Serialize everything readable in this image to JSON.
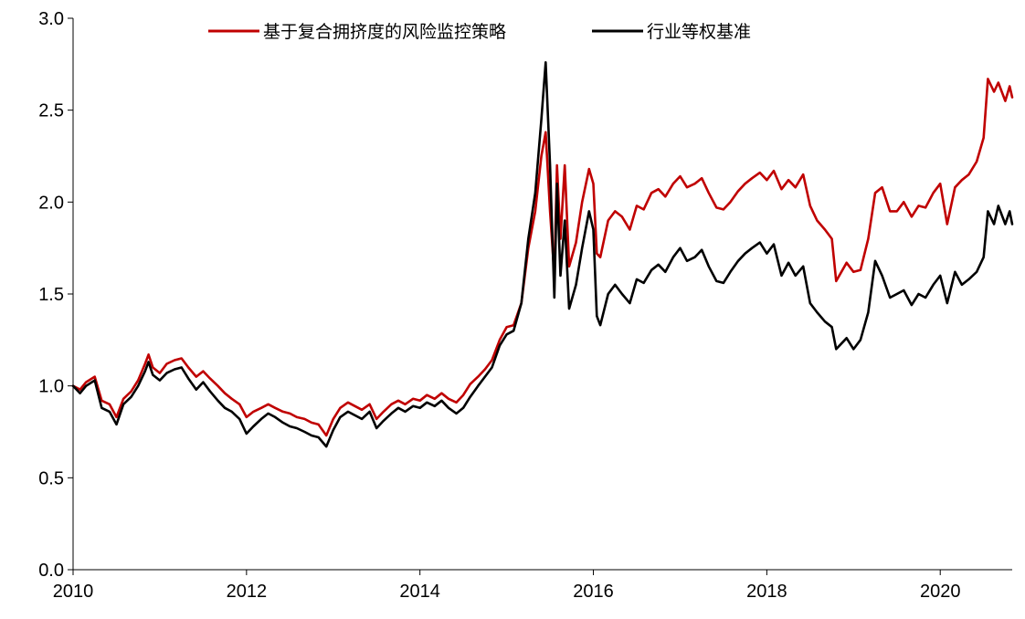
{
  "chart_data": {
    "type": "line",
    "title": "",
    "xlabel": "",
    "ylabel": "",
    "xlim": [
      2010.0,
      2020.83
    ],
    "ylim": [
      0.0,
      3.0
    ],
    "x_ticks": [
      "2010",
      "2012",
      "2014",
      "2016",
      "2018",
      "2020"
    ],
    "y_ticks": [
      "0.0",
      "0.5",
      "1.0",
      "1.5",
      "2.0",
      "2.5",
      "3.0"
    ],
    "grid": false,
    "legend_position": "top-center",
    "series": [
      {
        "name": "基于复合拥挤度的风险监控策略",
        "color": "#c00000",
        "points": [
          [
            2010.0,
            1.0
          ],
          [
            2010.08,
            0.98
          ],
          [
            2010.15,
            1.02
          ],
          [
            2010.25,
            1.05
          ],
          [
            2010.33,
            0.92
          ],
          [
            2010.42,
            0.9
          ],
          [
            2010.5,
            0.83
          ],
          [
            2010.58,
            0.93
          ],
          [
            2010.67,
            0.97
          ],
          [
            2010.75,
            1.03
          ],
          [
            2010.83,
            1.12
          ],
          [
            2010.87,
            1.17
          ],
          [
            2010.92,
            1.1
          ],
          [
            2011.0,
            1.07
          ],
          [
            2011.08,
            1.12
          ],
          [
            2011.17,
            1.14
          ],
          [
            2011.25,
            1.15
          ],
          [
            2011.33,
            1.1
          ],
          [
            2011.42,
            1.05
          ],
          [
            2011.5,
            1.08
          ],
          [
            2011.58,
            1.04
          ],
          [
            2011.67,
            1.0
          ],
          [
            2011.75,
            0.96
          ],
          [
            2011.83,
            0.93
          ],
          [
            2011.92,
            0.9
          ],
          [
            2012.0,
            0.83
          ],
          [
            2012.08,
            0.86
          ],
          [
            2012.17,
            0.88
          ],
          [
            2012.25,
            0.9
          ],
          [
            2012.33,
            0.88
          ],
          [
            2012.42,
            0.86
          ],
          [
            2012.5,
            0.85
          ],
          [
            2012.58,
            0.83
          ],
          [
            2012.67,
            0.82
          ],
          [
            2012.75,
            0.8
          ],
          [
            2012.83,
            0.79
          ],
          [
            2012.92,
            0.73
          ],
          [
            2013.0,
            0.82
          ],
          [
            2013.08,
            0.88
          ],
          [
            2013.17,
            0.91
          ],
          [
            2013.25,
            0.89
          ],
          [
            2013.33,
            0.87
          ],
          [
            2013.42,
            0.9
          ],
          [
            2013.5,
            0.82
          ],
          [
            2013.58,
            0.86
          ],
          [
            2013.67,
            0.9
          ],
          [
            2013.75,
            0.92
          ],
          [
            2013.83,
            0.9
          ],
          [
            2013.92,
            0.93
          ],
          [
            2014.0,
            0.92
          ],
          [
            2014.08,
            0.95
          ],
          [
            2014.17,
            0.93
          ],
          [
            2014.25,
            0.96
          ],
          [
            2014.33,
            0.93
          ],
          [
            2014.42,
            0.91
          ],
          [
            2014.5,
            0.95
          ],
          [
            2014.58,
            1.01
          ],
          [
            2014.67,
            1.05
          ],
          [
            2014.75,
            1.09
          ],
          [
            2014.83,
            1.14
          ],
          [
            2014.92,
            1.25
          ],
          [
            2015.0,
            1.32
          ],
          [
            2015.08,
            1.33
          ],
          [
            2015.17,
            1.45
          ],
          [
            2015.25,
            1.75
          ],
          [
            2015.33,
            1.95
          ],
          [
            2015.4,
            2.25
          ],
          [
            2015.45,
            2.38
          ],
          [
            2015.5,
            1.95
          ],
          [
            2015.55,
            1.6
          ],
          [
            2015.58,
            2.2
          ],
          [
            2015.62,
            1.8
          ],
          [
            2015.67,
            2.2
          ],
          [
            2015.72,
            1.65
          ],
          [
            2015.8,
            1.78
          ],
          [
            2015.87,
            2.0
          ],
          [
            2015.95,
            2.18
          ],
          [
            2016.0,
            2.1
          ],
          [
            2016.04,
            1.72
          ],
          [
            2016.08,
            1.7
          ],
          [
            2016.17,
            1.9
          ],
          [
            2016.25,
            1.95
          ],
          [
            2016.33,
            1.92
          ],
          [
            2016.42,
            1.85
          ],
          [
            2016.5,
            1.98
          ],
          [
            2016.58,
            1.96
          ],
          [
            2016.67,
            2.05
          ],
          [
            2016.75,
            2.07
          ],
          [
            2016.83,
            2.03
          ],
          [
            2016.92,
            2.1
          ],
          [
            2017.0,
            2.14
          ],
          [
            2017.08,
            2.08
          ],
          [
            2017.17,
            2.1
          ],
          [
            2017.25,
            2.13
          ],
          [
            2017.33,
            2.05
          ],
          [
            2017.42,
            1.97
          ],
          [
            2017.5,
            1.96
          ],
          [
            2017.58,
            2.0
          ],
          [
            2017.67,
            2.06
          ],
          [
            2017.75,
            2.1
          ],
          [
            2017.83,
            2.13
          ],
          [
            2017.92,
            2.16
          ],
          [
            2018.0,
            2.12
          ],
          [
            2018.08,
            2.17
          ],
          [
            2018.17,
            2.07
          ],
          [
            2018.25,
            2.12
          ],
          [
            2018.33,
            2.08
          ],
          [
            2018.42,
            2.15
          ],
          [
            2018.5,
            1.98
          ],
          [
            2018.58,
            1.9
          ],
          [
            2018.67,
            1.85
          ],
          [
            2018.75,
            1.8
          ],
          [
            2018.8,
            1.57
          ],
          [
            2018.92,
            1.67
          ],
          [
            2019.0,
            1.62
          ],
          [
            2019.08,
            1.63
          ],
          [
            2019.17,
            1.8
          ],
          [
            2019.25,
            2.05
          ],
          [
            2019.33,
            2.08
          ],
          [
            2019.42,
            1.95
          ],
          [
            2019.5,
            1.95
          ],
          [
            2019.58,
            2.0
          ],
          [
            2019.67,
            1.92
          ],
          [
            2019.75,
            1.98
          ],
          [
            2019.83,
            1.97
          ],
          [
            2019.92,
            2.05
          ],
          [
            2020.0,
            2.1
          ],
          [
            2020.08,
            1.88
          ],
          [
            2020.17,
            2.08
          ],
          [
            2020.25,
            2.12
          ],
          [
            2020.33,
            2.15
          ],
          [
            2020.42,
            2.22
          ],
          [
            2020.5,
            2.35
          ],
          [
            2020.55,
            2.67
          ],
          [
            2020.62,
            2.6
          ],
          [
            2020.67,
            2.65
          ],
          [
            2020.75,
            2.55
          ],
          [
            2020.8,
            2.63
          ],
          [
            2020.83,
            2.57
          ]
        ]
      },
      {
        "name": "行业等权基准",
        "color": "#000000",
        "points": [
          [
            2010.0,
            1.0
          ],
          [
            2010.08,
            0.96
          ],
          [
            2010.15,
            1.0
          ],
          [
            2010.25,
            1.03
          ],
          [
            2010.33,
            0.88
          ],
          [
            2010.42,
            0.86
          ],
          [
            2010.5,
            0.79
          ],
          [
            2010.58,
            0.9
          ],
          [
            2010.67,
            0.94
          ],
          [
            2010.75,
            1.0
          ],
          [
            2010.83,
            1.08
          ],
          [
            2010.87,
            1.13
          ],
          [
            2010.92,
            1.06
          ],
          [
            2011.0,
            1.03
          ],
          [
            2011.08,
            1.07
          ],
          [
            2011.17,
            1.09
          ],
          [
            2011.25,
            1.1
          ],
          [
            2011.33,
            1.04
          ],
          [
            2011.42,
            0.98
          ],
          [
            2011.5,
            1.02
          ],
          [
            2011.58,
            0.97
          ],
          [
            2011.67,
            0.92
          ],
          [
            2011.75,
            0.88
          ],
          [
            2011.83,
            0.86
          ],
          [
            2011.92,
            0.82
          ],
          [
            2012.0,
            0.74
          ],
          [
            2012.08,
            0.78
          ],
          [
            2012.17,
            0.82
          ],
          [
            2012.25,
            0.85
          ],
          [
            2012.33,
            0.83
          ],
          [
            2012.42,
            0.8
          ],
          [
            2012.5,
            0.78
          ],
          [
            2012.58,
            0.77
          ],
          [
            2012.67,
            0.75
          ],
          [
            2012.75,
            0.73
          ],
          [
            2012.83,
            0.72
          ],
          [
            2012.92,
            0.67
          ],
          [
            2013.0,
            0.76
          ],
          [
            2013.08,
            0.83
          ],
          [
            2013.17,
            0.86
          ],
          [
            2013.25,
            0.84
          ],
          [
            2013.33,
            0.82
          ],
          [
            2013.42,
            0.86
          ],
          [
            2013.5,
            0.77
          ],
          [
            2013.58,
            0.81
          ],
          [
            2013.67,
            0.85
          ],
          [
            2013.75,
            0.88
          ],
          [
            2013.83,
            0.86
          ],
          [
            2013.92,
            0.89
          ],
          [
            2014.0,
            0.88
          ],
          [
            2014.08,
            0.91
          ],
          [
            2014.17,
            0.89
          ],
          [
            2014.25,
            0.92
          ],
          [
            2014.33,
            0.88
          ],
          [
            2014.42,
            0.85
          ],
          [
            2014.5,
            0.88
          ],
          [
            2014.58,
            0.94
          ],
          [
            2014.67,
            1.0
          ],
          [
            2014.75,
            1.05
          ],
          [
            2014.83,
            1.1
          ],
          [
            2014.92,
            1.22
          ],
          [
            2015.0,
            1.28
          ],
          [
            2015.08,
            1.3
          ],
          [
            2015.17,
            1.45
          ],
          [
            2015.25,
            1.8
          ],
          [
            2015.33,
            2.05
          ],
          [
            2015.4,
            2.45
          ],
          [
            2015.45,
            2.76
          ],
          [
            2015.5,
            2.2
          ],
          [
            2015.55,
            1.48
          ],
          [
            2015.58,
            2.1
          ],
          [
            2015.62,
            1.6
          ],
          [
            2015.67,
            1.9
          ],
          [
            2015.72,
            1.42
          ],
          [
            2015.8,
            1.55
          ],
          [
            2015.87,
            1.75
          ],
          [
            2015.95,
            1.95
          ],
          [
            2016.0,
            1.85
          ],
          [
            2016.04,
            1.38
          ],
          [
            2016.08,
            1.33
          ],
          [
            2016.17,
            1.5
          ],
          [
            2016.25,
            1.55
          ],
          [
            2016.33,
            1.5
          ],
          [
            2016.42,
            1.45
          ],
          [
            2016.5,
            1.58
          ],
          [
            2016.58,
            1.56
          ],
          [
            2016.67,
            1.63
          ],
          [
            2016.75,
            1.66
          ],
          [
            2016.83,
            1.62
          ],
          [
            2016.92,
            1.7
          ],
          [
            2017.0,
            1.75
          ],
          [
            2017.08,
            1.68
          ],
          [
            2017.17,
            1.7
          ],
          [
            2017.25,
            1.74
          ],
          [
            2017.33,
            1.65
          ],
          [
            2017.42,
            1.57
          ],
          [
            2017.5,
            1.56
          ],
          [
            2017.58,
            1.62
          ],
          [
            2017.67,
            1.68
          ],
          [
            2017.75,
            1.72
          ],
          [
            2017.83,
            1.75
          ],
          [
            2017.92,
            1.78
          ],
          [
            2018.0,
            1.72
          ],
          [
            2018.08,
            1.77
          ],
          [
            2018.17,
            1.6
          ],
          [
            2018.25,
            1.67
          ],
          [
            2018.33,
            1.6
          ],
          [
            2018.42,
            1.65
          ],
          [
            2018.5,
            1.45
          ],
          [
            2018.58,
            1.4
          ],
          [
            2018.67,
            1.35
          ],
          [
            2018.75,
            1.32
          ],
          [
            2018.8,
            1.2
          ],
          [
            2018.92,
            1.26
          ],
          [
            2019.0,
            1.2
          ],
          [
            2019.08,
            1.25
          ],
          [
            2019.17,
            1.4
          ],
          [
            2019.25,
            1.68
          ],
          [
            2019.33,
            1.6
          ],
          [
            2019.42,
            1.48
          ],
          [
            2019.5,
            1.5
          ],
          [
            2019.58,
            1.52
          ],
          [
            2019.67,
            1.44
          ],
          [
            2019.75,
            1.5
          ],
          [
            2019.83,
            1.48
          ],
          [
            2019.92,
            1.55
          ],
          [
            2020.0,
            1.6
          ],
          [
            2020.08,
            1.45
          ],
          [
            2020.17,
            1.62
          ],
          [
            2020.25,
            1.55
          ],
          [
            2020.33,
            1.58
          ],
          [
            2020.42,
            1.62
          ],
          [
            2020.5,
            1.7
          ],
          [
            2020.55,
            1.95
          ],
          [
            2020.62,
            1.88
          ],
          [
            2020.67,
            1.98
          ],
          [
            2020.75,
            1.88
          ],
          [
            2020.8,
            1.95
          ],
          [
            2020.83,
            1.88
          ]
        ]
      }
    ]
  }
}
